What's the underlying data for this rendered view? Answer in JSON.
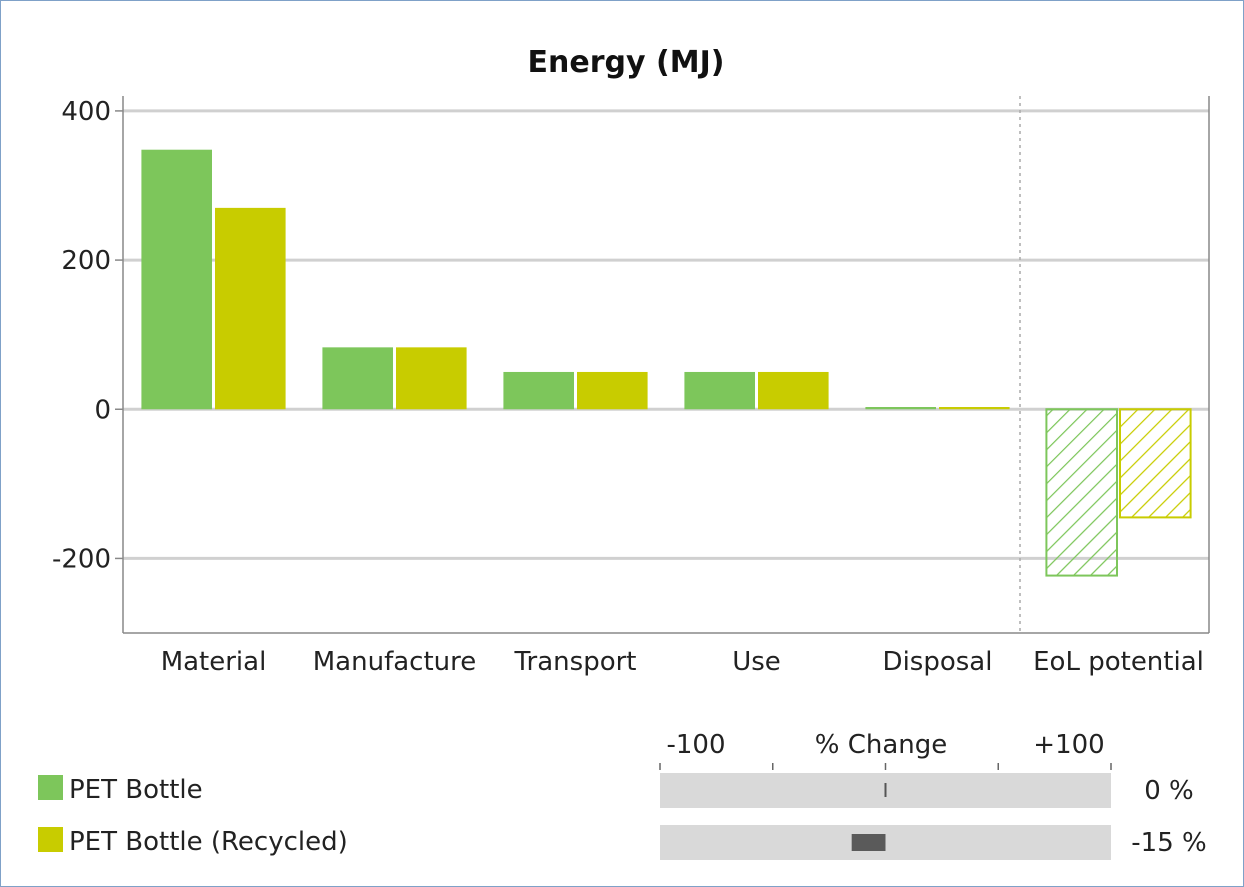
{
  "chart_data": {
    "type": "bar",
    "title": "Energy (MJ)",
    "xlabel": "",
    "ylabel": "",
    "ylim": [
      -300,
      420
    ],
    "yticks": [
      -200,
      0,
      200,
      400
    ],
    "ytick_labels": [
      "-200",
      "0",
      "200",
      "400"
    ],
    "grid": true,
    "categories": [
      "Material",
      "Manufacture",
      "Transport",
      "Use",
      "Disposal",
      "EoL potential"
    ],
    "series": [
      {
        "name": "PET Bottle",
        "color": "#7dc65b",
        "values": [
          348,
          83,
          50,
          50,
          3,
          -223
        ]
      },
      {
        "name": "PET Bottle (Recycled)",
        "color": "#c8cc00",
        "values": [
          270,
          83,
          50,
          50,
          3,
          -145
        ]
      }
    ],
    "hatched_categories": [
      "EoL potential"
    ],
    "legend_position": "bottom-left"
  },
  "pct_change": {
    "label": "% Change",
    "min_label": "-100",
    "max_label": "+100",
    "range": [
      -100,
      100
    ],
    "items": [
      {
        "value": 0,
        "text": "0 %"
      },
      {
        "value": -15,
        "text": "-15 %"
      }
    ]
  }
}
